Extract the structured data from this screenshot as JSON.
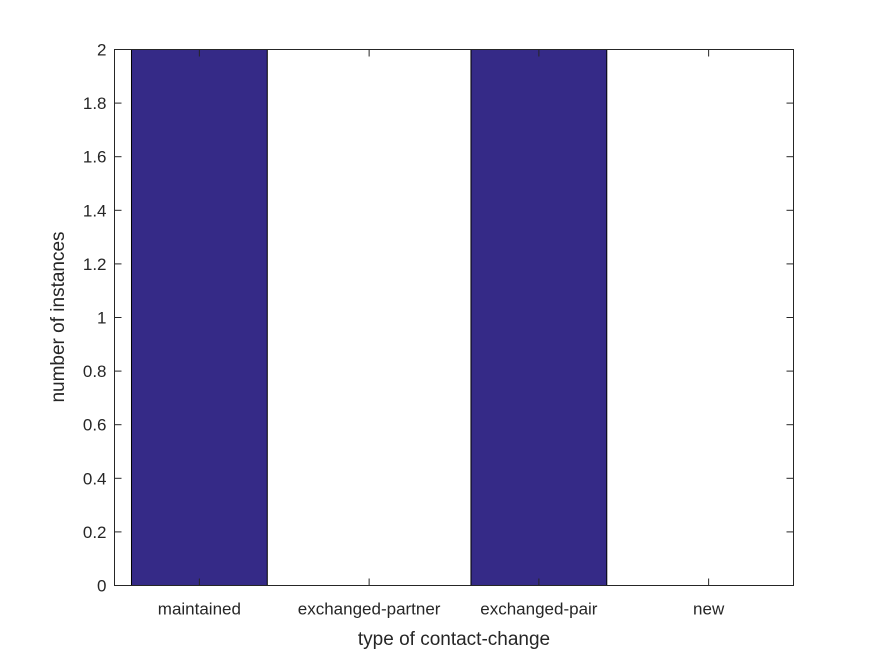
{
  "chart_data": {
    "type": "bar",
    "title": "",
    "xlabel": "type of contact-change",
    "ylabel": "number of instances",
    "categories": [
      "maintained",
      "exchanged-partner",
      "exchanged-pair",
      "new"
    ],
    "values": [
      2,
      0,
      2,
      0
    ],
    "ylim": [
      0,
      2
    ],
    "yticks": [
      "0",
      "0.2",
      "0.4",
      "0.6",
      "0.8",
      "1",
      "1.2",
      "1.4",
      "1.6",
      "1.8",
      "2"
    ],
    "grid": false,
    "bar_color": "#352a87",
    "edge_color": "#000000"
  }
}
